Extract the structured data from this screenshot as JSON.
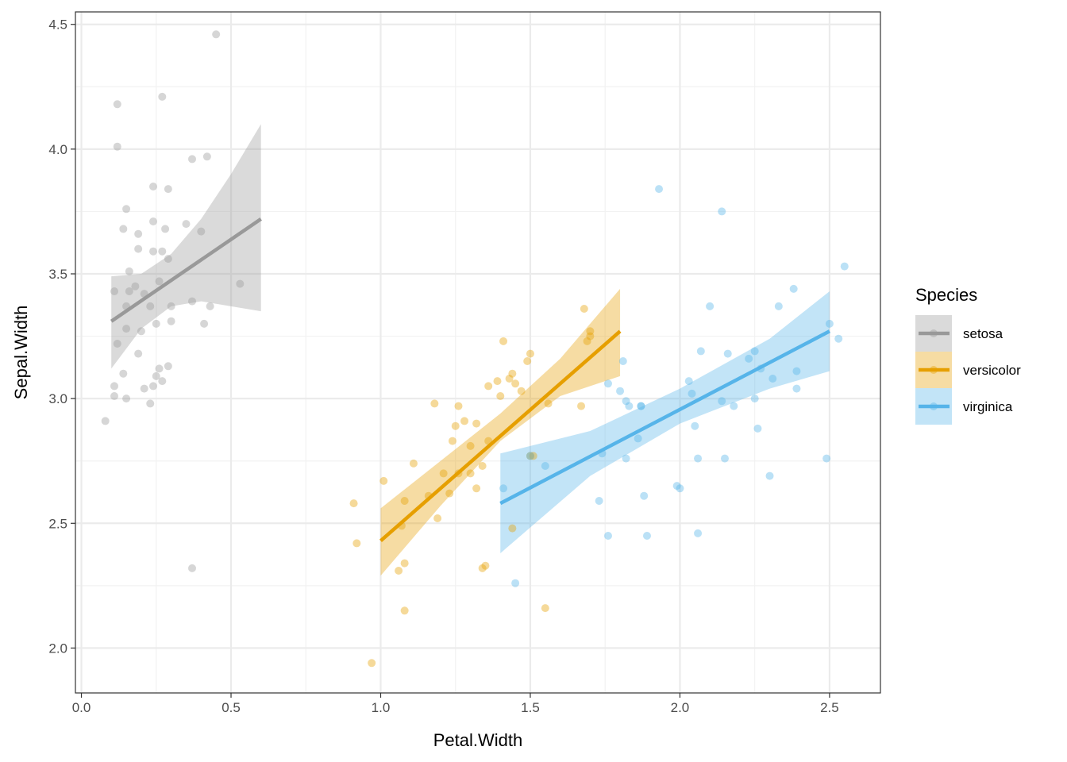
{
  "chart_data": {
    "type": "scatter",
    "title": "",
    "xlabel": "Petal.Width",
    "ylabel": "Sepal.Width",
    "xlim": [
      -0.02,
      2.67
    ],
    "ylim": [
      1.82,
      4.55
    ],
    "x_ticks": [
      {
        "value": 0.0,
        "label": "0.0"
      },
      {
        "value": 0.5,
        "label": "0.5"
      },
      {
        "value": 1.0,
        "label": "1.0"
      },
      {
        "value": 1.5,
        "label": "1.5"
      },
      {
        "value": 2.0,
        "label": "2.0"
      },
      {
        "value": 2.5,
        "label": "2.5"
      }
    ],
    "y_ticks": [
      {
        "value": 2.0,
        "label": "2.0"
      },
      {
        "value": 2.5,
        "label": "2.5"
      },
      {
        "value": 3.0,
        "label": "3.0"
      },
      {
        "value": 3.5,
        "label": "3.5"
      },
      {
        "value": 4.0,
        "label": "4.0"
      },
      {
        "value": 4.5,
        "label": "4.5"
      }
    ],
    "grid": true,
    "legend": {
      "title": "Species",
      "position": "right"
    },
    "series": [
      {
        "name": "setosa",
        "color": "#999999",
        "points": [
          [
            0.45,
            4.46
          ],
          [
            0.27,
            4.21
          ],
          [
            0.12,
            4.18
          ],
          [
            0.12,
            4.01
          ],
          [
            0.37,
            3.96
          ],
          [
            0.42,
            3.97
          ],
          [
            0.24,
            3.85
          ],
          [
            0.29,
            3.84
          ],
          [
            0.15,
            3.76
          ],
          [
            0.24,
            3.71
          ],
          [
            0.35,
            3.7
          ],
          [
            0.14,
            3.68
          ],
          [
            0.19,
            3.66
          ],
          [
            0.28,
            3.68
          ],
          [
            0.4,
            3.67
          ],
          [
            0.19,
            3.6
          ],
          [
            0.24,
            3.59
          ],
          [
            0.27,
            3.59
          ],
          [
            0.29,
            3.56
          ],
          [
            0.16,
            3.51
          ],
          [
            0.26,
            3.47
          ],
          [
            0.53,
            3.46
          ],
          [
            0.18,
            3.45
          ],
          [
            0.11,
            3.43
          ],
          [
            0.16,
            3.43
          ],
          [
            0.21,
            3.42
          ],
          [
            0.15,
            3.37
          ],
          [
            0.23,
            3.37
          ],
          [
            0.3,
            3.37
          ],
          [
            0.37,
            3.39
          ],
          [
            0.43,
            3.37
          ],
          [
            0.25,
            3.3
          ],
          [
            0.3,
            3.31
          ],
          [
            0.41,
            3.3
          ],
          [
            0.15,
            3.28
          ],
          [
            0.2,
            3.27
          ],
          [
            0.12,
            3.22
          ],
          [
            0.19,
            3.18
          ],
          [
            0.29,
            3.13
          ],
          [
            0.26,
            3.12
          ],
          [
            0.14,
            3.1
          ],
          [
            0.25,
            3.09
          ],
          [
            0.27,
            3.07
          ],
          [
            0.11,
            3.05
          ],
          [
            0.24,
            3.05
          ],
          [
            0.21,
            3.04
          ],
          [
            0.11,
            3.01
          ],
          [
            0.15,
            3.0
          ],
          [
            0.23,
            2.98
          ],
          [
            0.08,
            2.91
          ],
          [
            0.37,
            2.32
          ]
        ],
        "fit": [
          [
            0.1,
            3.31
          ],
          [
            0.6,
            3.72
          ]
        ],
        "band_upper": [
          [
            0.1,
            3.49
          ],
          [
            0.2,
            3.5
          ],
          [
            0.3,
            3.58
          ],
          [
            0.4,
            3.72
          ],
          [
            0.5,
            3.9
          ],
          [
            0.6,
            4.1
          ]
        ],
        "band_lower": [
          [
            0.1,
            3.12
          ],
          [
            0.2,
            3.28
          ],
          [
            0.3,
            3.37
          ],
          [
            0.4,
            3.39
          ],
          [
            0.5,
            3.37
          ],
          [
            0.6,
            3.35
          ]
        ]
      },
      {
        "name": "versicolor",
        "color": "#E69F00",
        "points": [
          [
            1.68,
            3.36
          ],
          [
            1.7,
            3.27
          ],
          [
            1.7,
            3.25
          ],
          [
            1.69,
            3.23
          ],
          [
            1.41,
            3.23
          ],
          [
            1.5,
            3.18
          ],
          [
            1.49,
            3.15
          ],
          [
            1.44,
            3.1
          ],
          [
            1.43,
            3.08
          ],
          [
            1.39,
            3.07
          ],
          [
            1.45,
            3.06
          ],
          [
            1.36,
            3.05
          ],
          [
            1.47,
            3.03
          ],
          [
            1.4,
            3.01
          ],
          [
            1.56,
            2.98
          ],
          [
            1.18,
            2.98
          ],
          [
            1.26,
            2.97
          ],
          [
            1.28,
            2.91
          ],
          [
            1.32,
            2.9
          ],
          [
            1.25,
            2.89
          ],
          [
            1.36,
            2.83
          ],
          [
            1.24,
            2.83
          ],
          [
            1.3,
            2.81
          ],
          [
            1.51,
            2.77
          ],
          [
            1.5,
            2.77
          ],
          [
            1.34,
            2.73
          ],
          [
            1.11,
            2.74
          ],
          [
            1.21,
            2.7
          ],
          [
            1.3,
            2.7
          ],
          [
            1.26,
            2.7
          ],
          [
            1.01,
            2.67
          ],
          [
            1.32,
            2.64
          ],
          [
            1.23,
            2.62
          ],
          [
            1.16,
            2.61
          ],
          [
            0.91,
            2.58
          ],
          [
            1.08,
            2.59
          ],
          [
            1.19,
            2.52
          ],
          [
            1.07,
            2.49
          ],
          [
            0.92,
            2.42
          ],
          [
            1.08,
            2.34
          ],
          [
            1.06,
            2.31
          ],
          [
            1.35,
            2.33
          ],
          [
            1.34,
            2.32
          ],
          [
            1.08,
            2.15
          ],
          [
            1.55,
            2.16
          ],
          [
            0.97,
            1.94
          ],
          [
            1.44,
            2.48
          ],
          [
            1.67,
            2.97
          ]
        ],
        "fit": [
          [
            1.0,
            2.43
          ],
          [
            1.8,
            3.27
          ]
        ],
        "band_upper": [
          [
            1.0,
            2.56
          ],
          [
            1.2,
            2.75
          ],
          [
            1.4,
            2.94
          ],
          [
            1.6,
            3.16
          ],
          [
            1.8,
            3.44
          ]
        ],
        "band_lower": [
          [
            1.0,
            2.29
          ],
          [
            1.2,
            2.57
          ],
          [
            1.4,
            2.83
          ],
          [
            1.6,
            3.01
          ],
          [
            1.8,
            3.09
          ]
        ]
      },
      {
        "name": "virginica",
        "color": "#56B4E9",
        "points": [
          [
            1.93,
            3.84
          ],
          [
            2.14,
            3.75
          ],
          [
            2.55,
            3.53
          ],
          [
            2.38,
            3.44
          ],
          [
            2.33,
            3.37
          ],
          [
            2.1,
            3.37
          ],
          [
            2.5,
            3.3
          ],
          [
            2.53,
            3.24
          ],
          [
            2.07,
            3.19
          ],
          [
            2.16,
            3.18
          ],
          [
            2.25,
            3.19
          ],
          [
            2.23,
            3.16
          ],
          [
            1.81,
            3.15
          ],
          [
            2.27,
            3.12
          ],
          [
            2.39,
            3.11
          ],
          [
            2.03,
            3.07
          ],
          [
            1.76,
            3.06
          ],
          [
            2.31,
            3.08
          ],
          [
            2.39,
            3.04
          ],
          [
            1.8,
            3.03
          ],
          [
            2.04,
            3.02
          ],
          [
            2.14,
            2.99
          ],
          [
            2.25,
            3.0
          ],
          [
            1.82,
            2.99
          ],
          [
            1.87,
            2.97
          ],
          [
            1.87,
            2.97
          ],
          [
            2.18,
            2.97
          ],
          [
            1.83,
            2.97
          ],
          [
            2.05,
            2.89
          ],
          [
            2.26,
            2.88
          ],
          [
            1.86,
            2.84
          ],
          [
            1.74,
            2.78
          ],
          [
            2.06,
            2.76
          ],
          [
            2.15,
            2.76
          ],
          [
            1.82,
            2.76
          ],
          [
            1.5,
            2.77
          ],
          [
            2.49,
            2.76
          ],
          [
            1.55,
            2.73
          ],
          [
            2.3,
            2.69
          ],
          [
            1.99,
            2.65
          ],
          [
            2.0,
            2.64
          ],
          [
            1.41,
            2.64
          ],
          [
            1.88,
            2.61
          ],
          [
            1.73,
            2.59
          ],
          [
            2.06,
            2.46
          ],
          [
            1.76,
            2.45
          ],
          [
            1.89,
            2.45
          ],
          [
            1.45,
            2.26
          ]
        ],
        "fit": [
          [
            1.4,
            2.58
          ],
          [
            2.5,
            3.27
          ]
        ],
        "band_upper": [
          [
            1.4,
            2.78
          ],
          [
            1.7,
            2.87
          ],
          [
            2.0,
            3.04
          ],
          [
            2.3,
            3.24
          ],
          [
            2.5,
            3.43
          ]
        ],
        "band_lower": [
          [
            1.4,
            2.38
          ],
          [
            1.7,
            2.69
          ],
          [
            2.0,
            2.9
          ],
          [
            2.3,
            3.04
          ],
          [
            2.5,
            3.11
          ]
        ]
      }
    ]
  }
}
